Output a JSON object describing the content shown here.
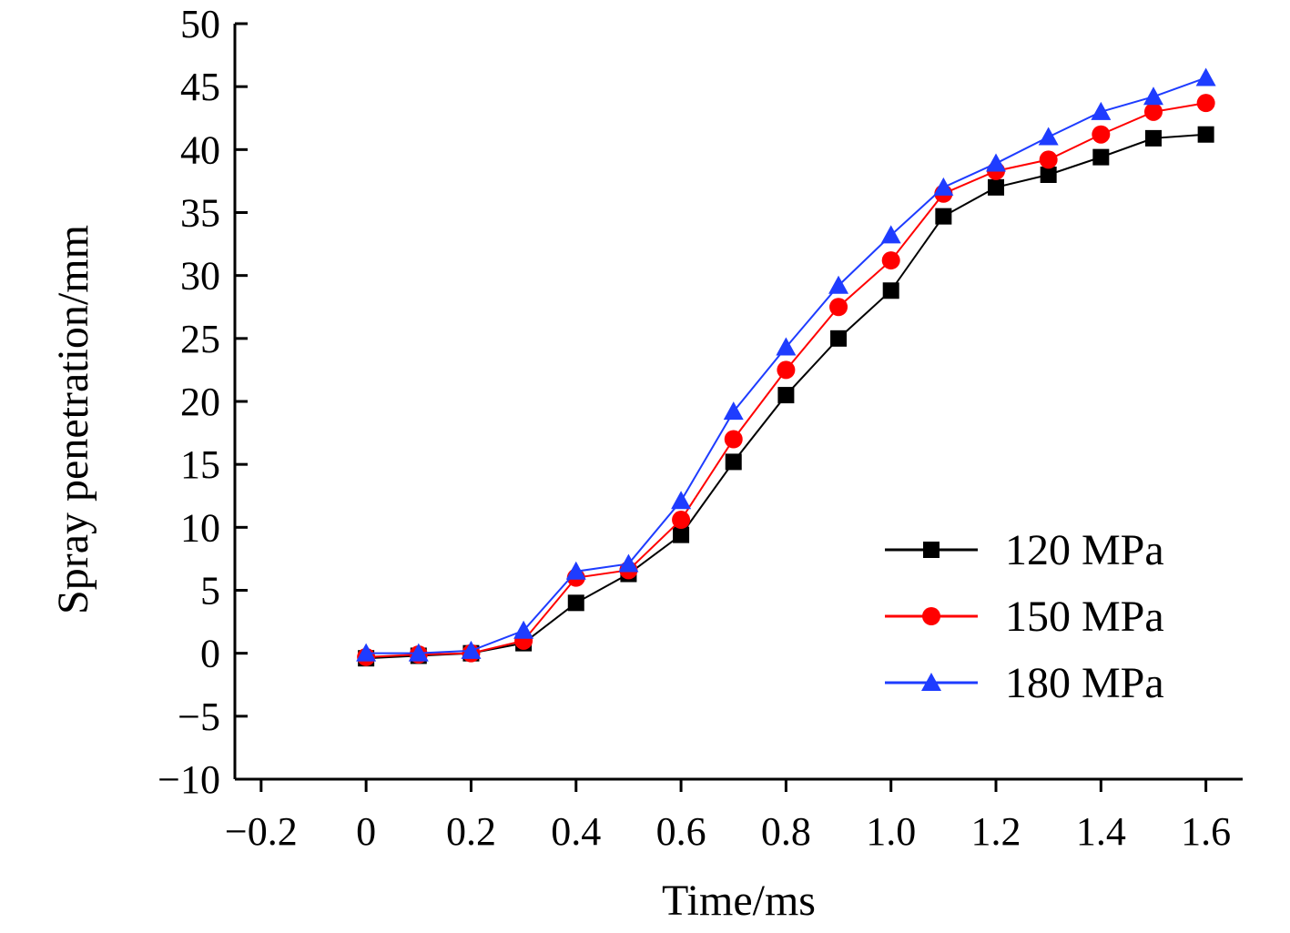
{
  "chart_data": {
    "type": "line",
    "title": "",
    "xlabel": "Time/ms",
    "ylabel": "Spray penetration/mm",
    "xlim": [
      -0.25,
      1.67
    ],
    "ylim": [
      -10,
      50
    ],
    "x_ticks": [
      -0.2,
      0,
      0.2,
      0.4,
      0.6,
      0.8,
      1.0,
      1.2,
      1.4,
      1.6
    ],
    "x_tick_labels": [
      "−0.2",
      "0",
      "0.2",
      "0.4",
      "0.6",
      "0.8",
      "1.0",
      "1.2",
      "1.4",
      "1.6"
    ],
    "y_ticks": [
      -10,
      -5,
      0,
      5,
      10,
      15,
      20,
      25,
      30,
      35,
      40,
      45,
      50
    ],
    "y_tick_labels": [
      "−10",
      "−5",
      "0",
      "5",
      "10",
      "15",
      "20",
      "25",
      "30",
      "35",
      "40",
      "45",
      "50"
    ],
    "grid": false,
    "legend_position": "lower-right",
    "x": [
      0,
      0.1,
      0.2,
      0.3,
      0.4,
      0.5,
      0.6,
      0.7,
      0.8,
      0.9,
      1.0,
      1.1,
      1.2,
      1.3,
      1.4,
      1.5,
      1.6
    ],
    "series": [
      {
        "name": "120 MPa",
        "color": "#000000",
        "marker": "square",
        "values": [
          -0.4,
          -0.2,
          0.0,
          0.8,
          4.0,
          6.3,
          9.4,
          15.2,
          20.5,
          25.0,
          28.8,
          34.7,
          37.0,
          38.0,
          39.4,
          40.9,
          41.2
        ]
      },
      {
        "name": "150 MPa",
        "color": "#ff0000",
        "marker": "circle",
        "values": [
          -0.3,
          -0.1,
          0.0,
          1.0,
          6.0,
          6.6,
          10.6,
          17.0,
          22.5,
          27.5,
          31.2,
          36.5,
          38.3,
          39.2,
          41.2,
          43.0,
          43.7
        ]
      },
      {
        "name": "180 MPa",
        "color": "#1e3cff",
        "marker": "triangle",
        "values": [
          0.0,
          0.0,
          0.2,
          1.8,
          6.5,
          7.1,
          12.1,
          19.2,
          24.3,
          29.2,
          33.2,
          37.0,
          38.9,
          41.0,
          43.0,
          44.2,
          45.7
        ]
      }
    ]
  }
}
